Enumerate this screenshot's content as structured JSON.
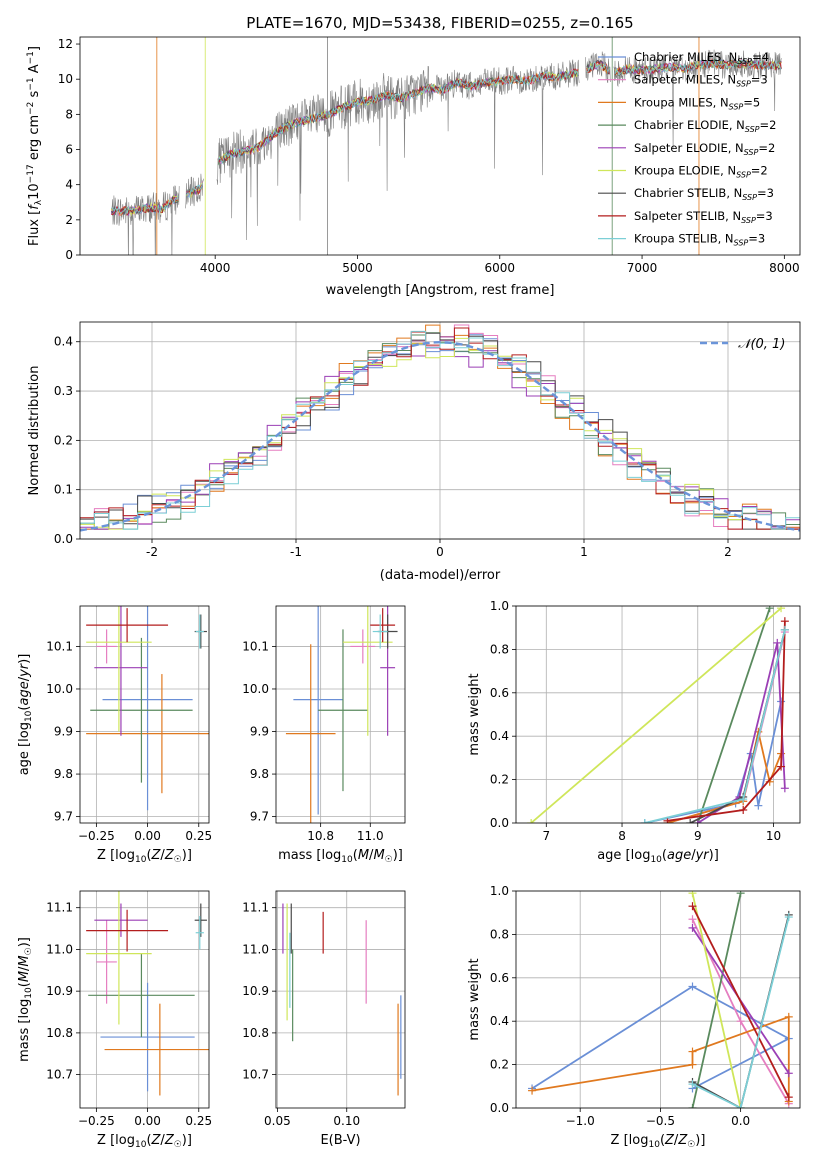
{
  "figure": {
    "title": "PLATE=1670, MJD=53438, FIBERID=0255, z=0.165"
  },
  "colors": {
    "Chabrier MILES": "#6a8fd6",
    "Salpeter MILES": "#e57ec0",
    "Kroupa MILES": "#e0791f",
    "Chabrier ELODIE": "#5a8a5e",
    "Salpeter ELODIE": "#9b3fb5",
    "Kroupa ELODIE": "#cfe65a",
    "Chabrier STELIB": "#4a4a4a",
    "Salpeter STELIB": "#b31d1d",
    "Kroupa STELIB": "#7ccfd6",
    "data": "#808080",
    "gaussian": "#6a94d9"
  },
  "chart_data": [
    {
      "id": "spectrum",
      "type": "line",
      "xlabel": "wavelength [Angstrom, rest frame]",
      "ylabel": "Flux [f_λ10^{-17} erg cm^{-2} s^{-1} A^{-1}]",
      "xlim": [
        3050,
        8110
      ],
      "ylim": [
        0,
        12.4
      ],
      "xticks": [
        4000,
        5000,
        6000,
        7000,
        8000
      ],
      "yticks": [
        0,
        2,
        4,
        6,
        8,
        10,
        12
      ],
      "legend_position": "right",
      "legend": [
        {
          "name": "Chabrier MILES",
          "nssp": "4"
        },
        {
          "name": "Salpeter MILES",
          "nssp": "3"
        },
        {
          "name": "Kroupa MILES",
          "nssp": "5"
        },
        {
          "name": "Chabrier ELODIE",
          "nssp": "2"
        },
        {
          "name": "Salpeter ELODIE",
          "nssp": "2"
        },
        {
          "name": "Kroupa ELODIE",
          "nssp": "2"
        },
        {
          "name": "Chabrier STELIB",
          "nssp": "3"
        },
        {
          "name": "Salpeter STELIB",
          "nssp": "3"
        },
        {
          "name": "Kroupa STELIB",
          "nssp": "3"
        }
      ],
      "continuum": {
        "x": [
          3270,
          3400,
          3550,
          3620,
          3700,
          3800,
          3900,
          4000,
          4100,
          4200,
          4300,
          4400,
          4500,
          4600,
          4700,
          4800,
          4900,
          5000,
          5100,
          5200,
          5300,
          5400,
          5500,
          5600,
          5700,
          5800,
          5900,
          6000,
          6100,
          6200,
          6300,
          6400,
          6500,
          6600,
          6700,
          6800,
          6900,
          7000,
          7100,
          7200,
          7300,
          7400,
          7500,
          7600,
          7700,
          7800
        ],
        "y": [
          2.5,
          2.5,
          2.7,
          2.6,
          3.1,
          3.4,
          3.8,
          5.2,
          5.7,
          5.9,
          6.1,
          6.8,
          7.3,
          7.6,
          7.8,
          8.0,
          8.4,
          8.7,
          8.8,
          9.1,
          8.9,
          9.2,
          9.5,
          9.4,
          9.8,
          9.6,
          9.8,
          9.9,
          10.0,
          9.9,
          10.2,
          10.1,
          10.3,
          10.5,
          10.9,
          10.3,
          10.6,
          10.5,
          10.6,
          10.7,
          10.6,
          10.8,
          10.9,
          10.8,
          10.9,
          10.8
        ]
      },
      "data_range": [
        3270,
        7980
      ],
      "gaps": [
        [
          3750,
          3790
        ],
        [
          3920,
          4010
        ],
        [
          6560,
          6600
        ],
        [
          6780,
          6800
        ]
      ]
    },
    {
      "id": "residuals",
      "type": "line",
      "xlabel": "(data-model)/error",
      "ylabel": "Normed distribution",
      "xlim": [
        -2.5,
        2.5
      ],
      "ylim": [
        0,
        0.44
      ],
      "xticks": [
        -2,
        -1,
        0,
        1,
        2
      ],
      "yticks": [
        0.0,
        0.1,
        0.2,
        0.3,
        0.4
      ],
      "legend_position": "top-right",
      "gaussian_label": "𝒩(0, 1)",
      "bins": 50
    },
    {
      "id": "age-vs-z",
      "type": "scatter",
      "xlabel": "Z [log10(Z/Z☉)]",
      "ylabel": "age [log10(age/yr)]",
      "xlim": [
        -0.33,
        0.3
      ],
      "ylim": [
        9.685,
        10.195
      ],
      "xticks": [
        -0.25,
        0.0,
        0.25
      ],
      "yticks": [
        9.7,
        9.8,
        9.9,
        10.0,
        10.1
      ],
      "points": [
        {
          "series": "Chabrier MILES",
          "x": 0.0,
          "y": 9.975,
          "xerr": 0.22,
          "yerr": 0.26
        },
        {
          "series": "Salpeter MILES",
          "x": -0.2,
          "y": 10.1,
          "xerr": 0.05,
          "yerr": 0.04
        },
        {
          "series": "Kroupa MILES",
          "x": 0.07,
          "y": 9.895,
          "xerr": 0.37,
          "yerr": 0.14
        },
        {
          "series": "Chabrier ELODIE",
          "x": -0.03,
          "y": 9.95,
          "xerr": 0.25,
          "yerr": 0.17
        },
        {
          "series": "Salpeter ELODIE",
          "x": -0.13,
          "y": 10.05,
          "xerr": 0.13,
          "yerr": 0.16
        },
        {
          "series": "Kroupa ELODIE",
          "x": -0.14,
          "y": 10.11,
          "xerr": 0.16,
          "yerr": 0.21
        },
        {
          "series": "Chabrier STELIB",
          "x": 0.26,
          "y": 10.135,
          "xerr": 0.03,
          "yerr": 0.04
        },
        {
          "series": "Salpeter STELIB",
          "x": -0.1,
          "y": 10.15,
          "xerr": 0.2,
          "yerr": 0.04
        },
        {
          "series": "Kroupa STELIB",
          "x": 0.255,
          "y": 10.135,
          "xerr": 0.02,
          "yerr": 0.04
        }
      ]
    },
    {
      "id": "age-vs-mass",
      "type": "scatter",
      "xlabel": "mass [log10(M/M☉)]",
      "ylabel": "",
      "xlim": [
        10.62,
        11.14
      ],
      "ylim": [
        9.685,
        10.195
      ],
      "xticks": [
        10.8,
        11.0
      ],
      "yticks": [
        9.7,
        9.8,
        9.9,
        10.0,
        10.1
      ],
      "points": [
        {
          "series": "Chabrier MILES",
          "x": 10.79,
          "y": 9.975,
          "xerr": 0.1,
          "yerr": 0.27
        },
        {
          "series": "Salpeter MILES",
          "x": 10.97,
          "y": 10.1,
          "xerr": 0.05,
          "yerr": 0.04
        },
        {
          "series": "Kroupa MILES",
          "x": 10.76,
          "y": 9.895,
          "xerr": 0.1,
          "yerr": 0.21
        },
        {
          "series": "Chabrier ELODIE",
          "x": 10.89,
          "y": 9.95,
          "xerr": 0.1,
          "yerr": 0.19
        },
        {
          "series": "Salpeter ELODIE",
          "x": 11.07,
          "y": 10.05,
          "xerr": 0.03,
          "yerr": 0.16
        },
        {
          "series": "Kroupa ELODIE",
          "x": 10.99,
          "y": 10.11,
          "xerr": 0.1,
          "yerr": 0.22
        },
        {
          "series": "Chabrier STELIB",
          "x": 11.07,
          "y": 10.135,
          "xerr": 0.04,
          "yerr": 0.04
        },
        {
          "series": "Salpeter STELIB",
          "x": 11.05,
          "y": 10.15,
          "xerr": 0.05,
          "yerr": 0.04
        },
        {
          "series": "Kroupa STELIB",
          "x": 11.04,
          "y": 10.135,
          "xerr": 0.03,
          "yerr": 0.04
        }
      ]
    },
    {
      "id": "mass-weight-vs-age",
      "type": "line",
      "xlabel": "age [log10(age/yr)]",
      "ylabel": "mass weight",
      "xlim": [
        6.6,
        10.35
      ],
      "ylim": [
        0,
        1
      ],
      "xticks": [
        7,
        8,
        9,
        10
      ],
      "yticks": [
        0.0,
        0.2,
        0.4,
        0.6,
        0.8,
        1.0
      ],
      "series": [
        {
          "name": "Chabrier MILES",
          "x": [
            8.3,
            9.5,
            9.7,
            9.8,
            10.1
          ],
          "y": [
            0.0,
            0.09,
            0.32,
            0.08,
            0.56
          ]
        },
        {
          "name": "Salpeter MILES",
          "x": [
            8.6,
            9.6,
            10.15
          ],
          "y": [
            0.0,
            0.1,
            0.88
          ]
        },
        {
          "name": "Kroupa MILES",
          "x": [
            8.6,
            9.6,
            9.8,
            9.95,
            10.1
          ],
          "y": [
            0.0,
            0.1,
            0.42,
            0.19,
            0.32
          ]
        },
        {
          "name": "Chabrier ELODIE",
          "x": [
            9.0,
            9.95
          ],
          "y": [
            0.0,
            0.99
          ]
        },
        {
          "name": "Salpeter ELODIE",
          "x": [
            9.0,
            9.55,
            10.05,
            10.15
          ],
          "y": [
            0.0,
            0.12,
            0.83,
            0.16
          ]
        },
        {
          "name": "Kroupa ELODIE",
          "x": [
            6.8,
            10.1
          ],
          "y": [
            0.0,
            0.99
          ]
        },
        {
          "name": "Chabrier STELIB",
          "x": [
            8.9,
            9.6,
            10.15
          ],
          "y": [
            0.0,
            0.12,
            0.89
          ]
        },
        {
          "name": "Salpeter STELIB",
          "x": [
            8.6,
            9.6,
            10.1,
            10.15
          ],
          "y": [
            0.01,
            0.06,
            0.26,
            0.93
          ]
        },
        {
          "name": "Kroupa STELIB",
          "x": [
            8.3,
            9.6,
            10.15
          ],
          "y": [
            0.0,
            0.11,
            0.89
          ]
        }
      ]
    },
    {
      "id": "mass-vs-z",
      "type": "scatter",
      "xlabel": "Z [log10(Z/Z☉)]",
      "ylabel": "mass [log10(M/M☉)]",
      "xlim": [
        -0.33,
        0.3
      ],
      "ylim": [
        10.62,
        11.14
      ],
      "xticks": [
        -0.25,
        0.0,
        0.25
      ],
      "yticks": [
        10.7,
        10.8,
        10.9,
        11.0,
        11.1
      ],
      "points": [
        {
          "series": "Chabrier MILES",
          "x": 0.0,
          "y": 10.79,
          "xerr": 0.23,
          "yerr": 0.13
        },
        {
          "series": "Salpeter MILES",
          "x": -0.2,
          "y": 10.97,
          "xerr": 0.05,
          "yerr": 0.1
        },
        {
          "series": "Kroupa MILES",
          "x": 0.06,
          "y": 10.76,
          "xerr": 0.27,
          "yerr": 0.11
        },
        {
          "series": "Chabrier ELODIE",
          "x": -0.03,
          "y": 10.89,
          "xerr": 0.26,
          "yerr": 0.1
        },
        {
          "series": "Salpeter ELODIE",
          "x": -0.13,
          "y": 11.07,
          "xerr": 0.13,
          "yerr": 0.04
        },
        {
          "series": "Kroupa ELODIE",
          "x": -0.14,
          "y": 10.99,
          "xerr": 0.16,
          "yerr": 0.17
        },
        {
          "series": "Chabrier STELIB",
          "x": 0.26,
          "y": 11.07,
          "xerr": 0.03,
          "yerr": 0.04
        },
        {
          "series": "Salpeter STELIB",
          "x": -0.1,
          "y": 11.045,
          "xerr": 0.2,
          "yerr": 0.05
        },
        {
          "series": "Kroupa STELIB",
          "x": 0.255,
          "y": 11.04,
          "xerr": 0.02,
          "yerr": 0.04
        }
      ]
    },
    {
      "id": "mass-vs-ebv",
      "type": "scatter",
      "xlabel": "E(B-V)",
      "ylabel": "",
      "xlim": [
        0.049,
        0.142
      ],
      "ylim": [
        10.62,
        11.14
      ],
      "xticks": [
        0.05,
        0.1
      ],
      "yticks": [
        10.7,
        10.8,
        10.9,
        11.0,
        11.1
      ],
      "points": [
        {
          "series": "Chabrier MILES",
          "x": 0.139,
          "y": 10.79,
          "xerr": 0,
          "yerr": 0.1
        },
        {
          "series": "Salpeter MILES",
          "x": 0.114,
          "y": 10.97,
          "xerr": 0,
          "yerr": 0.1
        },
        {
          "series": "Kroupa MILES",
          "x": 0.137,
          "y": 10.76,
          "xerr": 0,
          "yerr": 0.11
        },
        {
          "series": "Chabrier ELODIE",
          "x": 0.061,
          "y": 10.89,
          "xerr": 0,
          "yerr": 0.11
        },
        {
          "series": "Salpeter ELODIE",
          "x": 0.054,
          "y": 11.05,
          "xerr": 0,
          "yerr": 0.06
        },
        {
          "series": "Kroupa ELODIE",
          "x": 0.057,
          "y": 10.97,
          "xerr": 0,
          "yerr": 0.14
        },
        {
          "series": "Chabrier STELIB",
          "x": 0.06,
          "y": 11.05,
          "xerr": 0,
          "yerr": 0.06
        },
        {
          "series": "Salpeter STELIB",
          "x": 0.083,
          "y": 11.04,
          "xerr": 0,
          "yerr": 0.05
        },
        {
          "series": "Kroupa STELIB",
          "x": 0.059,
          "y": 10.95,
          "xerr": 0,
          "yerr": 0.09
        }
      ]
    },
    {
      "id": "mass-weight-vs-z",
      "type": "line",
      "xlabel": "Z [log10(Z/Z☉)]",
      "ylabel": "mass weight",
      "xlim": [
        -1.4,
        0.37
      ],
      "ylim": [
        0,
        1
      ],
      "xticks": [
        -1.0,
        -0.5,
        0.0
      ],
      "yticks": [
        0.0,
        0.2,
        0.4,
        0.6,
        0.8,
        1.0
      ],
      "series": [
        {
          "name": "Chabrier MILES",
          "x": [
            -1.3,
            -0.3,
            0.3,
            -0.3
          ],
          "y": [
            0.09,
            0.56,
            0.32,
            0.09
          ]
        },
        {
          "name": "Salpeter MILES",
          "x": [
            -0.3,
            0.0,
            0.3
          ],
          "y": [
            0.87,
            0.4,
            0.02
          ]
        },
        {
          "name": "Kroupa MILES",
          "x": [
            -1.3,
            -0.3,
            -0.3,
            0.3,
            0.3
          ],
          "y": [
            0.08,
            0.2,
            0.26,
            0.42,
            0.03
          ]
        },
        {
          "name": "Chabrier ELODIE",
          "x": [
            -0.3,
            0.0
          ],
          "y": [
            0.0,
            0.99
          ]
        },
        {
          "name": "Salpeter ELODIE",
          "x": [
            -0.3,
            0.3
          ],
          "y": [
            0.83,
            0.16
          ]
        },
        {
          "name": "Kroupa ELODIE",
          "x": [
            -0.3,
            0.0
          ],
          "y": [
            0.99,
            0.0
          ]
        },
        {
          "name": "Chabrier STELIB",
          "x": [
            -0.3,
            0.0,
            0.3
          ],
          "y": [
            0.12,
            0.0,
            0.89
          ]
        },
        {
          "name": "Salpeter STELIB",
          "x": [
            -0.3,
            0.3
          ],
          "y": [
            0.93,
            0.05
          ]
        },
        {
          "name": "Kroupa STELIB",
          "x": [
            -0.3,
            0.0,
            0.3
          ],
          "y": [
            0.11,
            0.0,
            0.88
          ]
        }
      ]
    }
  ]
}
